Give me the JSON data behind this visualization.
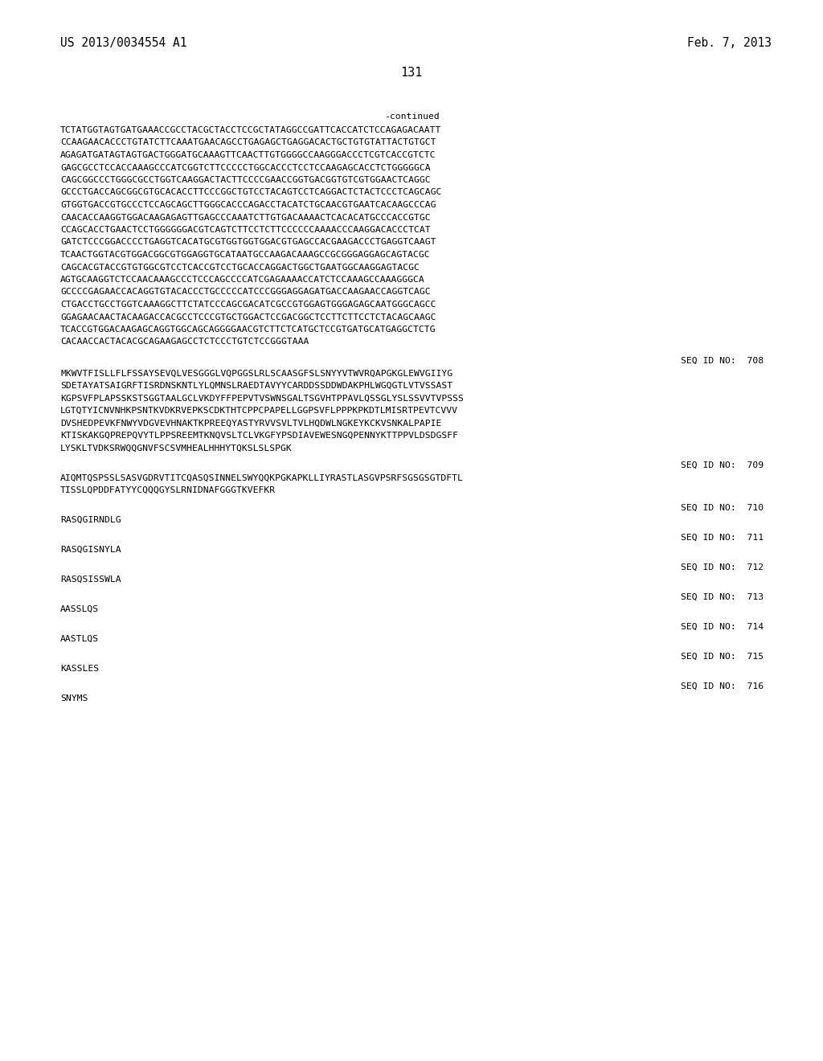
{
  "background_color": "#ffffff",
  "header_left": "US 2013/0034554 A1",
  "header_right": "Feb. 7, 2013",
  "page_number": "131",
  "continued_label": "-continued",
  "dna_lines": [
    "TCTATGGTAGTGATGAAACCGCCTACGCTACCTCCGCTATAGGCCGATTCACCATCTCCAGAGACAATT",
    "CCAAGAACACCCTGTATCTTCAAATGAACAGCCTGAGAGCTGAGGACACTGCTGTGTATTACTGTGCT",
    "AGAGATGATAGTAGTGACTGGGATGCAAAGTTCAACTTGTGGGGCCAAGGGACCCTCGTCACCGTCTC",
    "GAGCGCCTCCACCAAAGCCCATCGGTCTTCCCCCTGGCACCCTCCTCCAAGAGCACCTCTGGGGGCA",
    "CAGCGGCCCTGGGCGCCTGGTCAAGGACTACTTCCCCGAACCGGTGACGGTGTCGTGGAACTCAGGC",
    "GCCCTGACCAGCGGCGTGCACACCTTCCCGGCTGTCCTACAGTCCTCAGGACTCTACTCCCTCAGCAGC",
    "GTGGTGACCGTGCCCTCCAGCAGCTTGGGCACCCAGACCTACATCTGCAACGTGAATCACAAGCCCAG",
    "CAACACCAAGGTGGACAAGAGAGTTGAGCCCAAATCTTGTGACAAAACTCACACATGCCCACCGTGC",
    "CCAGCACCTGAACTCCTGGGGGGACGTCAGTCTTCCTCTTCCCCCCAAAACCCAAGGACACCCTCAT",
    "GATCTCCCGGACCCCTGAGGTCACATGCGTGGTGGTGGACGTGAGCCACGAAGACCCTGAGGTCAAGT",
    "TCAACTGGTACGTGGACGGCGTGGAGGTGCATAATGCCAAGACAAAGCCGCGGGAGGAGCAGTACGC",
    "CAGCACGTACCGTGTGGCGTCCTCACCGTCCTGCACCAGGACTGGCTGAATGGCAAGGAGTACGC",
    "AGTGCAAGGTCTCCAACAAAGCCCTCCCAGCCCCATCGAGAAAACCATCTCCAAAGCCAAAGGGCA",
    "GCCCCGAGAACCACAGGTGTACACCCTGCCCCCATCCCGGGAGGAGATGACCAAGAACCAGGTCAGC",
    "CTGACCTGCCTGGTCAAAGGCTTCTATCCCAGCGACATCGCCGTGGAGTGGGAGAGCAATGGGCAGCC",
    "GGAGAACAACTACAAGACCACGCCTCCCGTGCTGGACTCCGACGGCTCCTTCTTCCTCTACAGCAAGC",
    "TCACCGTGGACAAGAGCAGGTGGCAGCAGGGGAACGTCTTCTCATGCTCCGTGATGCATGAGGCTCTG",
    "CACAACCACTACACGCAGAAGAGCCTCTCCCTGTCTCCGGGTAAA"
  ],
  "seq_entries": [
    {
      "seq_id": "SEQ ID NO:  708",
      "lines": [
        "MKWVTFISLLFLFSSAYSEVQLVESGGGLVQPGGSLRLSCAASGFSLSNYYVTWVRQAPGKGLEWVGIIYG",
        "SDETAYATSAIGRFTISRDNSKNTLYLQMNSLRAEDTAVYYCARDDSSDDWDAKPHLWGQGTLVTVSSAST",
        "KGPSVFPLAPSSKSTSGGTAALGCLVKDYFFPEPVTVSWNSGALTSGVHTPPAVLQSSGLYSLSSVVTVPSSS",
        "LGTQTYICNVNHKPSNTKVDKRVEPKSCDKTHTCPPCPAPELLGGPSVFLPPPKPKDTLMISRTPEVTCVVV",
        "DVSHEDPEVKFNWYVDGVEVHNAKTKPREEQYASTYRVVSVLTVLHQDWLNGKEYKCKVSNKALPAPIE",
        "KTISKAKGQPREPQVYTLPPSREEMTKNQVSLTCLVKGFYPSDIAVEWESNGQPENNYKTTPPVLDSDGSFF",
        "LYSKLTVDKSRWQQGNVFSCSVMHEALHHHYTQKSLSLSPGK"
      ]
    },
    {
      "seq_id": "SEQ ID NO:  709",
      "lines": [
        "AIQMTQSPSSLSASVGDRVTITCQASQSINNELSWYQQKPGKAPKLLIYRASTLASGVPSRFSGSGSGTDFTL",
        "TISSLQPDDFATYYCQQQGYSLRNIDNAFGGGTKVEFKR"
      ]
    },
    {
      "seq_id": "SEQ ID NO:  710",
      "lines": [
        "RASQGIRNDLG"
      ]
    },
    {
      "seq_id": "SEQ ID NO:  711",
      "lines": [
        "RASQGISNYLA"
      ]
    },
    {
      "seq_id": "SEQ ID NO:  712",
      "lines": [
        "RASQSISSWLA"
      ]
    },
    {
      "seq_id": "SEQ ID NO:  713",
      "lines": [
        "AASSLQS"
      ]
    },
    {
      "seq_id": "SEQ ID NO:  714",
      "lines": [
        "AASTLQS"
      ]
    },
    {
      "seq_id": "SEQ ID NO:  715",
      "lines": [
        "KASSLES"
      ]
    },
    {
      "seq_id": "SEQ ID NO:  716",
      "lines": [
        "SNYMS"
      ]
    }
  ]
}
